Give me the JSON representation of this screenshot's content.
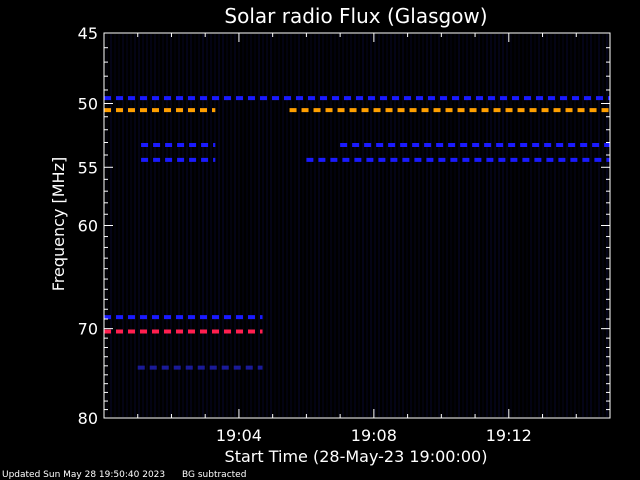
{
  "chart_data": {
    "type": "heatmap",
    "title": "Solar radio Flux (Glasgow)",
    "xlabel": "Start Time (28-May-23 19:00:00)",
    "ylabel": "Frequency [MHz]",
    "x_ticks": [
      "19:04",
      "19:08",
      "19:12"
    ],
    "x_tick_minutes": [
      4,
      8,
      12
    ],
    "xlim_minutes": [
      0,
      15
    ],
    "y_ticks": [
      45,
      50,
      55,
      60,
      70,
      80
    ],
    "ylim_mhz": [
      45,
      80
    ],
    "y_scale": "log",
    "bands": [
      {
        "freq_mhz": 50.5,
        "start_min": 0.0,
        "end_min": 3.3,
        "color": "#ff9f00"
      },
      {
        "freq_mhz": 50.5,
        "start_min": 5.5,
        "end_min": 15.0,
        "color": "#ff9f00"
      },
      {
        "freq_mhz": 49.6,
        "start_min": 0.0,
        "end_min": 15.0,
        "color": "#1a1aff"
      },
      {
        "freq_mhz": 53.2,
        "start_min": 1.1,
        "end_min": 3.3,
        "color": "#1a1aff"
      },
      {
        "freq_mhz": 53.2,
        "start_min": 7.0,
        "end_min": 15.0,
        "color": "#1a1aff"
      },
      {
        "freq_mhz": 54.4,
        "start_min": 1.1,
        "end_min": 3.3,
        "color": "#1a1aff"
      },
      {
        "freq_mhz": 54.4,
        "start_min": 6.0,
        "end_min": 15.0,
        "color": "#1a1aff"
      },
      {
        "freq_mhz": 68.8,
        "start_min": 0.0,
        "end_min": 4.7,
        "color": "#1a1aff"
      },
      {
        "freq_mhz": 70.3,
        "start_min": 0.0,
        "end_min": 4.7,
        "color": "#ff1f4f"
      },
      {
        "freq_mhz": 74.2,
        "start_min": 1.0,
        "end_min": 4.7,
        "color": "#1a1a99"
      }
    ],
    "colors": {
      "background": "#000000",
      "axes": "#ffffff"
    }
  },
  "footer": {
    "updated": "Updated Sun May 28 19:50:40 2023",
    "note": "BG subtracted"
  }
}
